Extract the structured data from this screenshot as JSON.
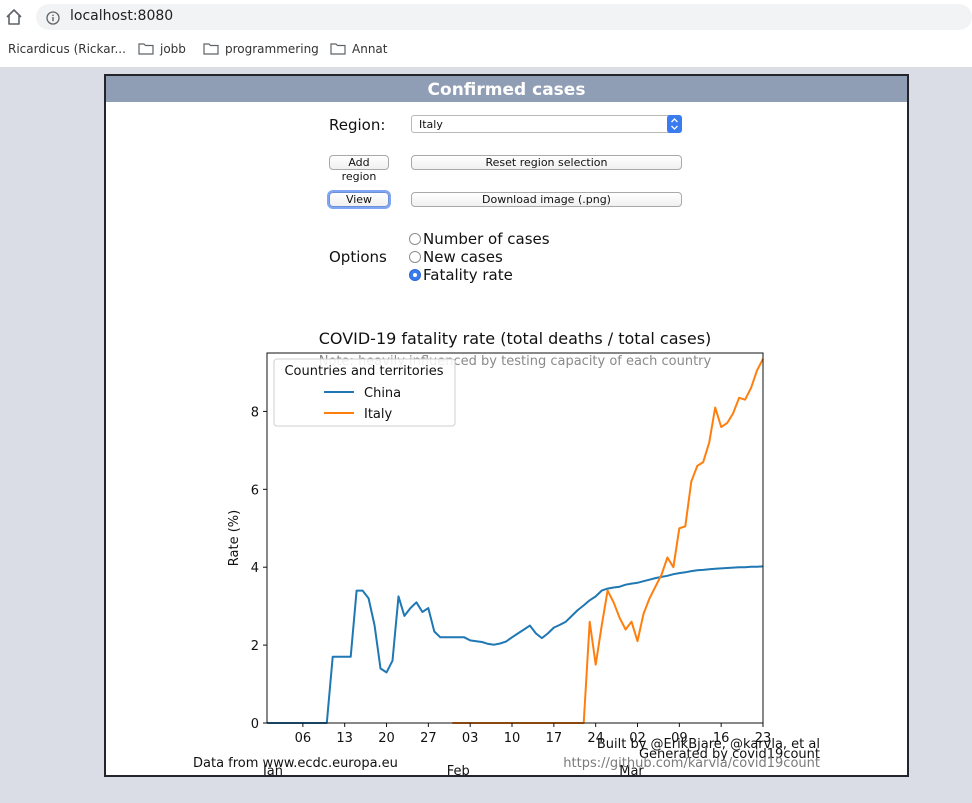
{
  "browser": {
    "url": "localhost:8080",
    "bookmarks": [
      {
        "label": "Ricardicus (Rickar...",
        "icon": "page-icon"
      },
      {
        "label": "jobb",
        "icon": "folder-icon"
      },
      {
        "label": "programmering",
        "icon": "folder-icon"
      },
      {
        "label": "Annat",
        "icon": "folder-icon"
      }
    ]
  },
  "page": {
    "title": "Confirmed cases",
    "region_label": "Region:",
    "region_value": "Italy",
    "add_region_label": "Add region",
    "reset_region_label": "Reset region selection",
    "view_label": "View",
    "download_label": "Download image (.png)",
    "options_label": "Options",
    "options": [
      {
        "label": "Number of cases",
        "checked": false
      },
      {
        "label": "New cases",
        "checked": false
      },
      {
        "label": "Fatality rate",
        "checked": true
      }
    ]
  },
  "chart_data": {
    "type": "line",
    "title": "COVID-19 fatality rate (total deaths / total cases)",
    "subtitle": "Note: heavily influenced by testing capacity of each country",
    "ylabel": "Rate (%)",
    "xlabel": "",
    "ylim": [
      0,
      9.5
    ],
    "yticks": [
      0,
      2,
      4,
      6,
      8
    ],
    "xlim": [
      "2019-12-31",
      "2020-03-23"
    ],
    "xticks_minor": [
      {
        "date": "2020-01-06",
        "label": "06"
      },
      {
        "date": "2020-01-13",
        "label": "13"
      },
      {
        "date": "2020-01-20",
        "label": "20"
      },
      {
        "date": "2020-01-27",
        "label": "27"
      },
      {
        "date": "2020-02-03",
        "label": "03"
      },
      {
        "date": "2020-02-10",
        "label": "10"
      },
      {
        "date": "2020-02-17",
        "label": "17"
      },
      {
        "date": "2020-02-24",
        "label": "24"
      },
      {
        "date": "2020-03-02",
        "label": "02"
      },
      {
        "date": "2020-03-09",
        "label": "09"
      },
      {
        "date": "2020-03-16",
        "label": "16"
      },
      {
        "date": "2020-03-23",
        "label": "23"
      }
    ],
    "xticks_major": [
      {
        "date": "2020-01-01",
        "label": "Jan"
      },
      {
        "date": "2020-02-01",
        "label": "Feb"
      },
      {
        "date": "2020-03-01",
        "label": "Mar"
      }
    ],
    "legend_title": "Countries and territories",
    "legend_position": "top-left",
    "grid": false,
    "series": [
      {
        "name": "China",
        "color": "#1f77b4",
        "points": [
          [
            "2019-12-31",
            0
          ],
          [
            "2020-01-10",
            0
          ],
          [
            "2020-01-11",
            1.7
          ],
          [
            "2020-01-12",
            1.7
          ],
          [
            "2020-01-13",
            1.7
          ],
          [
            "2020-01-14",
            1.7
          ],
          [
            "2020-01-15",
            3.4
          ],
          [
            "2020-01-16",
            3.4
          ],
          [
            "2020-01-17",
            3.2
          ],
          [
            "2020-01-18",
            2.5
          ],
          [
            "2020-01-19",
            1.4
          ],
          [
            "2020-01-20",
            1.3
          ],
          [
            "2020-01-21",
            1.6
          ],
          [
            "2020-01-22",
            3.25
          ],
          [
            "2020-01-23",
            2.75
          ],
          [
            "2020-01-24",
            2.95
          ],
          [
            "2020-01-25",
            3.1
          ],
          [
            "2020-01-26",
            2.85
          ],
          [
            "2020-01-27",
            2.95
          ],
          [
            "2020-01-28",
            2.35
          ],
          [
            "2020-01-29",
            2.2
          ],
          [
            "2020-01-30",
            2.2
          ],
          [
            "2020-01-31",
            2.2
          ],
          [
            "2020-02-01",
            2.2
          ],
          [
            "2020-02-02",
            2.2
          ],
          [
            "2020-02-03",
            2.12
          ],
          [
            "2020-02-04",
            2.1
          ],
          [
            "2020-02-05",
            2.08
          ],
          [
            "2020-02-06",
            2.03
          ],
          [
            "2020-02-07",
            2.01
          ],
          [
            "2020-02-08",
            2.04
          ],
          [
            "2020-02-09",
            2.09
          ],
          [
            "2020-02-10",
            2.2
          ],
          [
            "2020-02-11",
            2.3
          ],
          [
            "2020-02-12",
            2.4
          ],
          [
            "2020-02-13",
            2.5
          ],
          [
            "2020-02-14",
            2.3
          ],
          [
            "2020-02-15",
            2.18
          ],
          [
            "2020-02-16",
            2.3
          ],
          [
            "2020-02-17",
            2.45
          ],
          [
            "2020-02-18",
            2.52
          ],
          [
            "2020-02-19",
            2.6
          ],
          [
            "2020-02-20",
            2.75
          ],
          [
            "2020-02-21",
            2.9
          ],
          [
            "2020-02-22",
            3.02
          ],
          [
            "2020-02-23",
            3.15
          ],
          [
            "2020-02-24",
            3.25
          ],
          [
            "2020-02-25",
            3.4
          ],
          [
            "2020-02-26",
            3.45
          ],
          [
            "2020-02-27",
            3.48
          ],
          [
            "2020-02-28",
            3.5
          ],
          [
            "2020-02-29",
            3.55
          ],
          [
            "2020-03-01",
            3.58
          ],
          [
            "2020-03-02",
            3.6
          ],
          [
            "2020-03-03",
            3.64
          ],
          [
            "2020-03-04",
            3.68
          ],
          [
            "2020-03-05",
            3.72
          ],
          [
            "2020-03-06",
            3.75
          ],
          [
            "2020-03-07",
            3.78
          ],
          [
            "2020-03-08",
            3.82
          ],
          [
            "2020-03-09",
            3.85
          ],
          [
            "2020-03-10",
            3.87
          ],
          [
            "2020-03-11",
            3.9
          ],
          [
            "2020-03-12",
            3.92
          ],
          [
            "2020-03-13",
            3.93
          ],
          [
            "2020-03-14",
            3.95
          ],
          [
            "2020-03-15",
            3.96
          ],
          [
            "2020-03-16",
            3.97
          ],
          [
            "2020-03-17",
            3.98
          ],
          [
            "2020-03-18",
            3.99
          ],
          [
            "2020-03-19",
            4.0
          ],
          [
            "2020-03-20",
            4.0
          ],
          [
            "2020-03-21",
            4.01
          ],
          [
            "2020-03-22",
            4.01
          ],
          [
            "2020-03-23",
            4.02
          ]
        ]
      },
      {
        "name": "Italy",
        "color": "#ff7f0e",
        "points": [
          [
            "2020-01-31",
            0
          ],
          [
            "2020-02-21",
            0
          ],
          [
            "2020-02-22",
            0
          ],
          [
            "2020-02-23",
            2.6
          ],
          [
            "2020-02-24",
            1.5
          ],
          [
            "2020-02-25",
            2.5
          ],
          [
            "2020-02-26",
            3.4
          ],
          [
            "2020-02-27",
            3.1
          ],
          [
            "2020-02-28",
            2.7
          ],
          [
            "2020-02-29",
            2.4
          ],
          [
            "2020-03-01",
            2.6
          ],
          [
            "2020-03-02",
            2.1
          ],
          [
            "2020-03-03",
            2.8
          ],
          [
            "2020-03-04",
            3.2
          ],
          [
            "2020-03-05",
            3.5
          ],
          [
            "2020-03-06",
            3.8
          ],
          [
            "2020-03-07",
            4.25
          ],
          [
            "2020-03-08",
            4.0
          ],
          [
            "2020-03-09",
            5.0
          ],
          [
            "2020-03-10",
            5.05
          ],
          [
            "2020-03-11",
            6.2
          ],
          [
            "2020-03-12",
            6.6
          ],
          [
            "2020-03-13",
            6.7
          ],
          [
            "2020-03-14",
            7.2
          ],
          [
            "2020-03-15",
            8.1
          ],
          [
            "2020-03-16",
            7.6
          ],
          [
            "2020-03-17",
            7.7
          ],
          [
            "2020-03-18",
            7.95
          ],
          [
            "2020-03-19",
            8.35
          ],
          [
            "2020-03-20",
            8.3
          ],
          [
            "2020-03-21",
            8.6
          ],
          [
            "2020-03-22",
            9.05
          ],
          [
            "2020-03-23",
            9.35
          ]
        ]
      }
    ]
  },
  "footer": {
    "data_source": "Data from www.ecdc.europa.eu",
    "credits": "Built by @ErikBjare, @karvla, et al",
    "generated_by": "Generated by covid19count",
    "repo_url": "https://github.com/karvla/covid19count"
  }
}
